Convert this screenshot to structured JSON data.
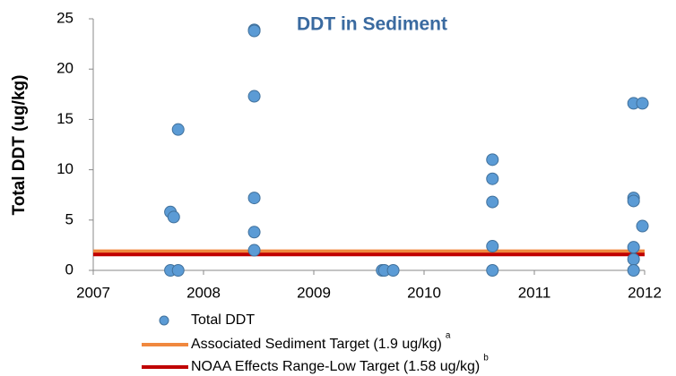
{
  "chart_data": {
    "type": "scatter",
    "title": "DDT in Sediment",
    "ylabel": "Total DDT (ug/kg)",
    "xlim": [
      2007,
      2012
    ],
    "xticks": [
      2007,
      2008,
      2009,
      2010,
      2011,
      2012
    ],
    "ylim": [
      0,
      25
    ],
    "yticks": [
      0,
      5,
      10,
      15,
      20,
      25
    ],
    "grid": false,
    "legend": "bottom",
    "series": [
      {
        "name": "Total DDT",
        "color": "#5b9bd5",
        "x": [
          2007.7,
          2007.77,
          2007.7,
          2007.73,
          2007.77,
          2008.46,
          2008.46,
          2008.46,
          2008.46,
          2008.46,
          2008.46,
          2009.62,
          2009.64,
          2009.72,
          2010.62,
          2010.62,
          2010.62,
          2010.62,
          2010.62,
          2011.9,
          2011.98,
          2011.9,
          2011.9,
          2011.9,
          2011.9,
          2011.9,
          2011.98
        ],
        "values": [
          0,
          0,
          5.8,
          5.3,
          14.0,
          23.9,
          23.8,
          17.3,
          7.2,
          3.8,
          2.0,
          0,
          0,
          0,
          11.0,
          9.1,
          6.8,
          2.4,
          0,
          16.6,
          16.6,
          7.2,
          6.9,
          2.3,
          1.1,
          0,
          4.4
        ]
      }
    ],
    "hlines": [
      {
        "name": "Associated Sediment Target (1.9 ug/kg)",
        "footnote": "a",
        "color": "#f0883e",
        "value": 1.9
      },
      {
        "name": "NOAA Effects Range-Low Target (1.58 ug/kg)",
        "footnote": "b",
        "color": "#c00000",
        "value": 1.58
      }
    ]
  }
}
